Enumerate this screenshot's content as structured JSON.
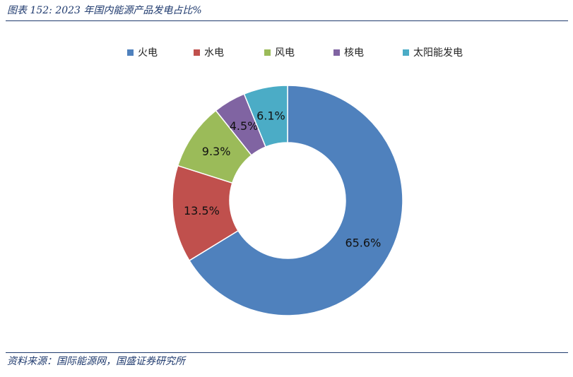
{
  "header": {
    "title": "图表 152:  2023 年国内能源产品发电占比%"
  },
  "footer": {
    "source": "资料来源：国际能源网，国盛证券研究所"
  },
  "chart_data": {
    "type": "pie",
    "categories": [
      "火电",
      "水电",
      "风电",
      "核电",
      "太阳能发电"
    ],
    "values": [
      65.6,
      13.5,
      9.3,
      4.5,
      6.1
    ],
    "data_labels": [
      "65.6%",
      "13.5%",
      "9.3%",
      "4.5%",
      "6.1%"
    ],
    "colors": [
      "#4f81bd",
      "#c0504d",
      "#9bbb59",
      "#8064a2",
      "#4bacc6"
    ],
    "unit": "%",
    "legend_placement": "top",
    "start": "top",
    "direction": "clockwise"
  }
}
